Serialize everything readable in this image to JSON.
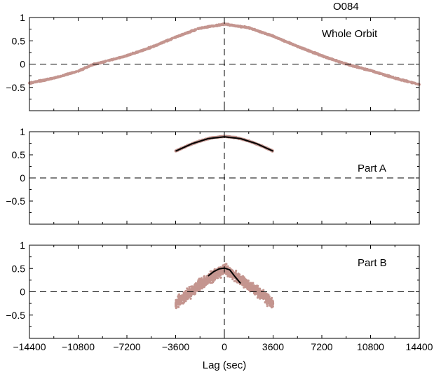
{
  "figure_title": "O084",
  "xlabel": "Lag (sec)",
  "colors": {
    "scatter": "#c4958f",
    "fit": "#000000",
    "axes": "#000000",
    "refline": "#000000"
  },
  "chart_data": [
    {
      "type": "scatter",
      "panel_label": "Whole Orbit",
      "xlim": [
        -14400,
        14400
      ],
      "ylim": [
        -1,
        1
      ],
      "x_ticks": [
        -14400,
        -10800,
        -7200,
        -3600,
        0,
        3600,
        7200,
        10800,
        14400
      ],
      "y_ticks": [
        -0.5,
        0,
        0.5,
        1
      ],
      "reference_lines": {
        "x": 0,
        "y": 0
      },
      "series": [
        {
          "kind": "scatter",
          "x_range": [
            -14400,
            14400
          ],
          "points": [
            [
              -14400,
              -0.41
            ],
            [
              -12600,
              -0.3
            ],
            [
              -10800,
              -0.15
            ],
            [
              -9800,
              -0.02
            ],
            [
              -7200,
              0.18
            ],
            [
              -5400,
              0.36
            ],
            [
              -3600,
              0.58
            ],
            [
              -1800,
              0.77
            ],
            [
              0,
              0.86
            ],
            [
              1800,
              0.78
            ],
            [
              3600,
              0.6
            ],
            [
              5400,
              0.38
            ],
            [
              7200,
              0.18
            ],
            [
              9000,
              0.0
            ],
            [
              10800,
              -0.14
            ],
            [
              12600,
              -0.3
            ],
            [
              14400,
              -0.44
            ]
          ]
        }
      ]
    },
    {
      "type": "scatter",
      "panel_label": "Part A",
      "xlim": [
        -14400,
        14400
      ],
      "ylim": [
        -1,
        1
      ],
      "x_ticks": [
        -14400,
        -10800,
        -7200,
        -3600,
        0,
        3600,
        7200,
        10800,
        14400
      ],
      "y_ticks": [
        -0.5,
        0,
        0.5,
        1
      ],
      "reference_lines": {
        "x": 0,
        "y": 0
      },
      "series": [
        {
          "kind": "scatter",
          "x_range": [
            -3600,
            3600
          ],
          "points": [
            [
              -3600,
              0.58
            ],
            [
              -2700,
              0.7
            ],
            [
              -1800,
              0.8
            ],
            [
              -900,
              0.87
            ],
            [
              0,
              0.9
            ],
            [
              900,
              0.87
            ],
            [
              1800,
              0.8
            ],
            [
              2700,
              0.7
            ],
            [
              3600,
              0.58
            ]
          ]
        },
        {
          "kind": "fit",
          "points": [
            [
              -3600,
              0.58
            ],
            [
              -2400,
              0.74
            ],
            [
              -1200,
              0.85
            ],
            [
              0,
              0.89
            ],
            [
              1200,
              0.85
            ],
            [
              2400,
              0.74
            ],
            [
              3600,
              0.58
            ]
          ]
        }
      ]
    },
    {
      "type": "scatter",
      "panel_label": "Part B",
      "xlim": [
        -14400,
        14400
      ],
      "ylim": [
        -1,
        1
      ],
      "x_ticks": [
        -14400,
        -10800,
        -7200,
        -3600,
        0,
        3600,
        7200,
        10800,
        14400
      ],
      "y_ticks": [
        -0.5,
        0,
        0.5,
        1
      ],
      "reference_lines": {
        "x": 0,
        "y": 0
      },
      "series": [
        {
          "kind": "scatter",
          "x_range": [
            -3600,
            3600
          ],
          "points": [
            [
              -3600,
              -0.25
            ],
            [
              -2700,
              -0.05
            ],
            [
              -1800,
              0.15
            ],
            [
              -900,
              0.32
            ],
            [
              0,
              0.5
            ],
            [
              900,
              0.32
            ],
            [
              1800,
              0.15
            ],
            [
              2700,
              -0.05
            ],
            [
              3600,
              -0.25
            ]
          ]
        },
        {
          "kind": "fit",
          "points": [
            [
              -1200,
              0.34
            ],
            [
              -800,
              0.43
            ],
            [
              -400,
              0.49
            ],
            [
              0,
              0.51
            ],
            [
              400,
              0.47
            ],
            [
              800,
              0.32
            ],
            [
              1200,
              0.18
            ]
          ]
        }
      ]
    }
  ]
}
